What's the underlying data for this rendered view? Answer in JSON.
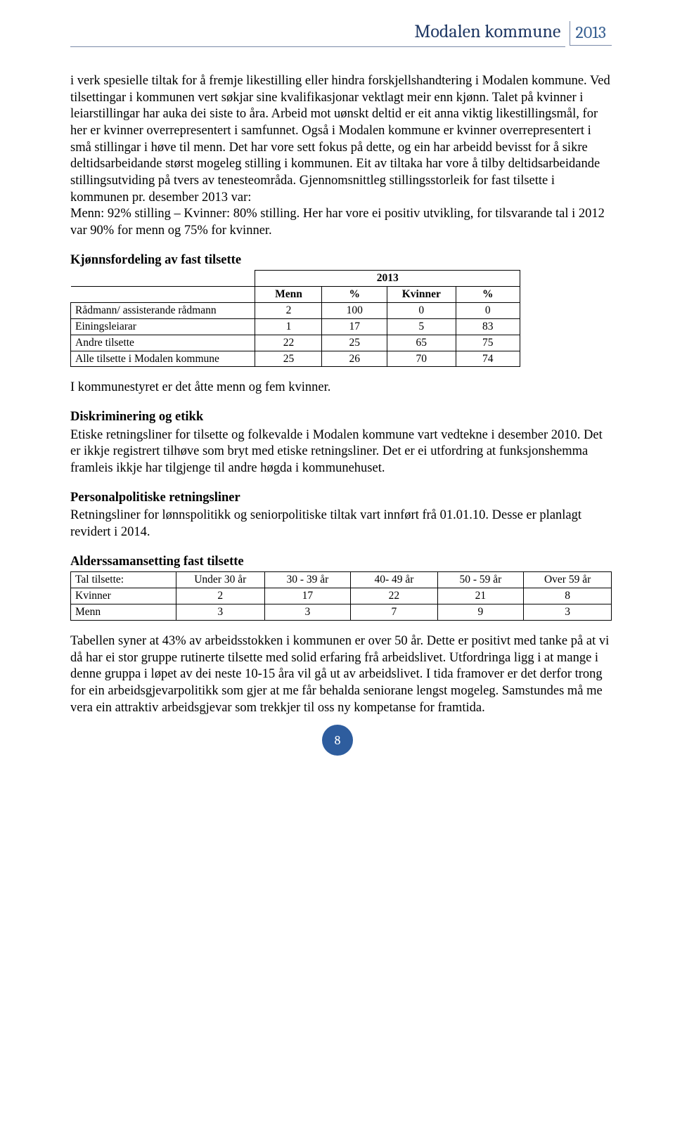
{
  "header": {
    "title": "Modalen kommune",
    "year": "2013"
  },
  "paragraph1": "i verk spesielle tiltak for å fremje likestilling eller hindra forskjellshandtering i Modalen kommune. Ved tilsettingar i kommunen vert søkjar sine kvalifikasjonar vektlagt meir enn kjønn. Talet på kvinner i leiarstillingar har auka dei siste to åra. Arbeid mot uønskt deltid er eit anna viktig likestillingsmål, for her er kvinner overrepresentert i samfunnet. Også i Modalen kommune er kvinner overrepresentert i små stillingar i høve til menn. Det har vore sett fokus på dette, og ein har arbeidd bevisst for å sikre deltidsarbeidande størst mogeleg stilling i kommunen. Eit av tiltaka har vore å tilby deltidsarbeidande stillingsutviding på tvers av tenesteområda. Gjennomsnittleg stillingsstorleik for fast tilsette  i kommunen pr. desember 2013 var:",
  "paragraph1b": "Menn: 92% stilling – Kvinner: 80% stilling. Her har vore ei positiv utvikling, for tilsvarande tal i 2012 var 90% for menn og 75% for kvinner.",
  "section1_title": "Kjønnsfordeling av fast tilsette",
  "table1": {
    "year_header": "2013",
    "col_menn": "Menn",
    "col_pct1": "%",
    "col_kvinner": "Kvinner",
    "col_pct2": "%",
    "rows": [
      {
        "label": "Rådmann/ assisterande rådmann",
        "menn": "2",
        "pct1": "100",
        "kvinner": "0",
        "pct2": "0"
      },
      {
        "label": "Einingsleiarar",
        "menn": "1",
        "pct1": "17",
        "kvinner": "5",
        "pct2": "83"
      },
      {
        "label": "Andre tilsette",
        "menn": "22",
        "pct1": "25",
        "kvinner": "65",
        "pct2": "75"
      },
      {
        "label": "Alle tilsette i Modalen kommune",
        "menn": "25",
        "pct1": "26",
        "kvinner": "70",
        "pct2": "74"
      }
    ]
  },
  "paragraph2": "I kommunestyret er det åtte menn og fem kvinner.",
  "section2_title": "Diskriminering og etikk",
  "paragraph3": "Etiske retningsliner for tilsette og folkevalde i Modalen kommune vart vedtekne i desember 2010. Det er ikkje registrert tilhøve som bryt med etiske retningsliner. Det er ei utfordring at funksjonshemma framleis ikkje har tilgjenge til andre høgda i kommunehuset.",
  "section3_title": "Personalpolitiske retningsliner",
  "paragraph4": "Retningsliner for lønnspolitikk og seniorpolitiske tiltak vart innført frå 01.01.10. Desse er planlagt revidert i 2014.",
  "section4_title": "Alderssamansetting fast tilsette",
  "table2": {
    "col_label": "Tal tilsette:",
    "cols": [
      "Under 30 år",
      "30 - 39 år",
      "40- 49 år",
      "50 - 59 år",
      "Over 59 år"
    ],
    "rows": [
      {
        "label": "Kvinner",
        "vals": [
          "2",
          "17",
          "22",
          "21",
          "8"
        ]
      },
      {
        "label": "Menn",
        "vals": [
          "3",
          "3",
          "7",
          "9",
          "3"
        ]
      }
    ]
  },
  "paragraph5": "Tabellen syner at 43% av arbeidsstokken i kommunen er over 50 år. Dette er positivt med tanke på at vi då har ei stor gruppe rutinerte tilsette med solid erfaring frå arbeidslivet. Utfordringa ligg i at mange i denne gruppa i løpet av dei neste 10-15 åra vil gå ut av arbeidslivet. I tida framover er det derfor trong for ein arbeidsgjevarpolitikk som gjer at me får behalda seniorane lengst mogeleg. Samstundes må me vera ein attraktiv arbeidsgjevar som trekkjer til oss ny kompetanse for framtida.",
  "page_number": "8"
}
